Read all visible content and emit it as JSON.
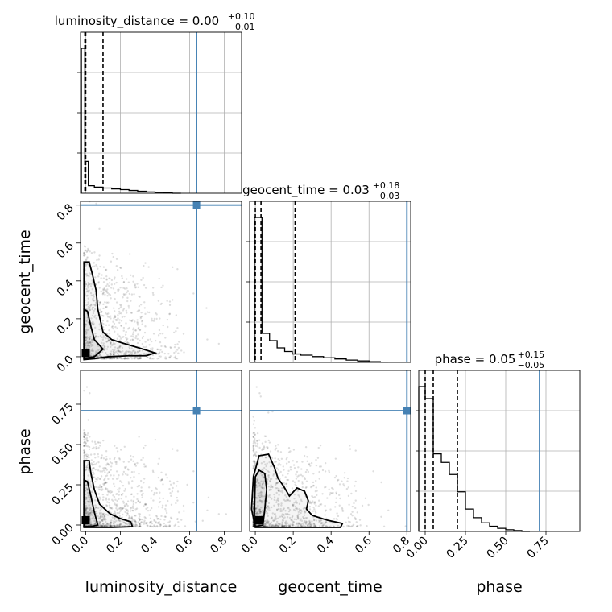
{
  "chart_data": {
    "type": "corner",
    "grid": true,
    "parameters": [
      {
        "name": "luminosity_distance",
        "title": {
          "prefix": "luminosity_distance = 0.00",
          "plus": "+0.10",
          "minus": "−0.01"
        },
        "median": 0.0,
        "q_low": -0.005,
        "q_high": 0.1,
        "injection": 0.64,
        "range": [
          -0.03,
          0.9
        ],
        "ticks": [
          "0.0",
          "0.2",
          "0.4",
          "0.6",
          "0.8"
        ],
        "tick_values": [
          0.0,
          0.2,
          0.4,
          0.6,
          0.8
        ],
        "hist_edges": [
          -0.025,
          -0.005,
          0.015,
          0.05,
          0.1,
          0.15,
          0.2,
          0.25,
          0.3,
          0.35,
          0.4,
          0.45,
          0.5,
          0.55
        ],
        "hist_counts": [
          1.0,
          0.22,
          0.052,
          0.042,
          0.036,
          0.03,
          0.025,
          0.019,
          0.014,
          0.009,
          0.006,
          0.003,
          0.0
        ]
      },
      {
        "name": "geocent_time",
        "title": {
          "prefix": "geocent_time = 0.03",
          "plus": "+0.18",
          "minus": "−0.03"
        },
        "median": 0.03,
        "q_low": 0.0,
        "q_high": 0.21,
        "injection": 0.8,
        "range": [
          -0.03,
          0.82
        ],
        "ticks": [
          "0.0",
          "0.2",
          "0.4",
          "0.6",
          "0.8"
        ],
        "tick_values": [
          0.0,
          0.2,
          0.4,
          0.6,
          0.8
        ],
        "hist_edges": [
          -0.005,
          0.035,
          0.075,
          0.115,
          0.155,
          0.195,
          0.24,
          0.3,
          0.36,
          0.42,
          0.48,
          0.54,
          0.6,
          0.66,
          0.7
        ],
        "hist_counts": [
          1.0,
          0.2,
          0.15,
          0.1,
          0.075,
          0.058,
          0.05,
          0.04,
          0.032,
          0.024,
          0.016,
          0.01,
          0.005,
          0.002
        ]
      },
      {
        "name": "phase",
        "title": {
          "prefix": "phase = 0.05",
          "plus": "+0.15",
          "minus": "−0.05"
        },
        "median": 0.05,
        "q_low": 0.0,
        "q_high": 0.2,
        "injection": 0.71,
        "range": [
          -0.04,
          0.96
        ],
        "ticks": [
          "0.00",
          "0.25",
          "0.50",
          "0.75"
        ],
        "tick_values": [
          0.0,
          0.25,
          0.5,
          0.75
        ],
        "hist_edges": [
          -0.04,
          0.0,
          0.05,
          0.1,
          0.15,
          0.2,
          0.25,
          0.3,
          0.35,
          0.4,
          0.45,
          0.5,
          0.55,
          0.6,
          0.65
        ],
        "hist_counts": [
          0.84,
          0.77,
          0.45,
          0.4,
          0.33,
          0.23,
          0.13,
          0.08,
          0.05,
          0.03,
          0.018,
          0.01,
          0.005,
          0.0
        ]
      }
    ],
    "pairs": [
      {
        "x": "luminosity_distance",
        "y": "geocent_time",
        "injection": [
          0.64,
          0.8
        ],
        "contours": [
          [
            [
              -0.01,
              0.5
            ],
            [
              0.02,
              0.5
            ],
            [
              0.04,
              0.43
            ],
            [
              0.06,
              0.35
            ],
            [
              0.07,
              0.25
            ],
            [
              0.1,
              0.13
            ],
            [
              0.15,
              0.09
            ],
            [
              0.22,
              0.07
            ],
            [
              0.33,
              0.04
            ],
            [
              0.4,
              0.02
            ],
            [
              0.35,
              0.005
            ],
            [
              0.25,
              0.005
            ],
            [
              0.13,
              0.0
            ],
            [
              0.05,
              -0.01
            ],
            [
              -0.01,
              -0.015
            ],
            [
              -0.01,
              0.5
            ]
          ],
          [
            [
              -0.01,
              0.25
            ],
            [
              0.01,
              0.24
            ],
            [
              0.03,
              0.16
            ],
            [
              0.05,
              0.09
            ],
            [
              0.1,
              0.04
            ],
            [
              0.05,
              0.0
            ],
            [
              -0.01,
              -0.01
            ],
            [
              -0.01,
              0.25
            ]
          ]
        ],
        "core": [
          0.0,
          0.02
        ]
      },
      {
        "x": "luminosity_distance",
        "y": "phase",
        "injection": [
          0.64,
          0.71
        ],
        "contours": [
          [
            [
              -0.01,
              0.4
            ],
            [
              0.02,
              0.4
            ],
            [
              0.03,
              0.32
            ],
            [
              0.05,
              0.22
            ],
            [
              0.08,
              0.13
            ],
            [
              0.14,
              0.07
            ],
            [
              0.2,
              0.04
            ],
            [
              0.26,
              0.02
            ],
            [
              0.27,
              -0.01
            ],
            [
              0.15,
              -0.015
            ],
            [
              0.05,
              -0.015
            ],
            [
              -0.01,
              -0.015
            ],
            [
              -0.01,
              0.4
            ]
          ],
          [
            [
              -0.01,
              0.28
            ],
            [
              0.01,
              0.27
            ],
            [
              0.03,
              0.18
            ],
            [
              0.05,
              0.08
            ],
            [
              0.07,
              0.0
            ],
            [
              0.03,
              -0.01
            ],
            [
              -0.01,
              -0.01
            ],
            [
              -0.01,
              0.28
            ]
          ]
        ],
        "core": [
          0.0,
          0.03
        ]
      },
      {
        "x": "geocent_time",
        "y": "phase",
        "injection": [
          0.8,
          0.71
        ],
        "contours": [
          [
            [
              -0.02,
              0.1
            ],
            [
              -0.01,
              0.3
            ],
            [
              0.02,
              0.43
            ],
            [
              0.07,
              0.44
            ],
            [
              0.1,
              0.36
            ],
            [
              0.12,
              0.29
            ],
            [
              0.15,
              0.24
            ],
            [
              0.18,
              0.18
            ],
            [
              0.22,
              0.23
            ],
            [
              0.26,
              0.21
            ],
            [
              0.28,
              0.15
            ],
            [
              0.27,
              0.1
            ],
            [
              0.3,
              0.06
            ],
            [
              0.38,
              0.03
            ],
            [
              0.46,
              0.01
            ],
            [
              0.45,
              -0.015
            ],
            [
              0.3,
              -0.015
            ],
            [
              0.15,
              -0.015
            ],
            [
              0.0,
              -0.015
            ],
            [
              -0.02,
              0.1
            ]
          ],
          [
            [
              -0.005,
              0.05
            ],
            [
              0.0,
              0.3
            ],
            [
              0.02,
              0.34
            ],
            [
              0.05,
              0.32
            ],
            [
              0.06,
              0.22
            ],
            [
              0.05,
              0.1
            ],
            [
              0.04,
              0.0
            ],
            [
              0.0,
              -0.01
            ],
            [
              -0.005,
              0.05
            ]
          ]
        ],
        "core": [
          0.02,
          0.03
        ]
      }
    ]
  }
}
